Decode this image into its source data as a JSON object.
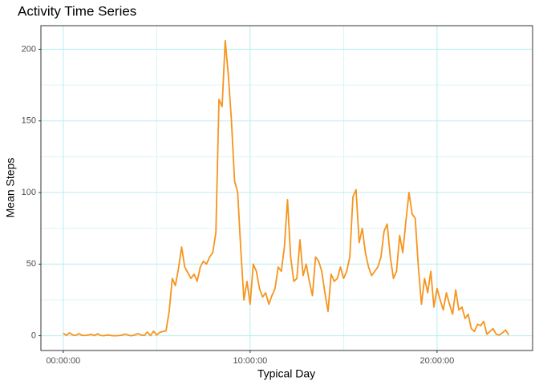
{
  "chart_data": {
    "type": "line",
    "title": "Activity Time Series",
    "x_label": "Typical Day",
    "y_label": "Mean Steps",
    "x": [
      0,
      10,
      20,
      30,
      40,
      50,
      60,
      70,
      80,
      90,
      100,
      110,
      120,
      130,
      140,
      150,
      160,
      170,
      180,
      190,
      200,
      210,
      220,
      230,
      240,
      250,
      260,
      270,
      280,
      290,
      300,
      310,
      320,
      330,
      340,
      350,
      360,
      370,
      380,
      390,
      400,
      410,
      420,
      430,
      440,
      450,
      460,
      470,
      480,
      490,
      500,
      510,
      520,
      530,
      540,
      550,
      560,
      570,
      580,
      590,
      600,
      610,
      620,
      630,
      640,
      650,
      660,
      670,
      680,
      690,
      700,
      710,
      720,
      730,
      740,
      750,
      760,
      770,
      780,
      790,
      800,
      810,
      820,
      830,
      840,
      850,
      860,
      870,
      880,
      890,
      900,
      910,
      920,
      930,
      940,
      950,
      960,
      970,
      980,
      990,
      1000,
      1010,
      1020,
      1030,
      1040,
      1050,
      1060,
      1070,
      1080,
      1090,
      1100,
      1110,
      1120,
      1130,
      1140,
      1150,
      1160,
      1170,
      1180,
      1190,
      1200,
      1210,
      1220,
      1230,
      1240,
      1250,
      1260,
      1270,
      1280,
      1290,
      1300,
      1310,
      1320,
      1330,
      1340,
      1350,
      1360,
      1370,
      1380,
      1390,
      1400,
      1410,
      1420,
      1430
    ],
    "series": [
      {
        "name": "Mean Steps",
        "color": "#f7941d",
        "values": [
          1.7,
          0.3,
          2.0,
          0.6,
          0.2,
          1.5,
          0.3,
          0.2,
          0.5,
          1.0,
          0.1,
          1.4,
          0.2,
          0.0,
          0.5,
          0.3,
          0.0,
          0.0,
          0.2,
          0.5,
          1.2,
          0.3,
          0.0,
          0.6,
          1.5,
          0.5,
          0.2,
          2.5,
          0.1,
          3.2,
          0.5,
          2.3,
          3.0,
          3.5,
          17,
          40,
          35,
          47,
          62,
          48,
          44,
          40,
          43,
          38,
          48,
          52,
          50,
          55,
          58,
          72,
          165,
          160,
          206,
          182,
          150,
          108,
          100,
          60,
          25,
          38,
          22,
          50,
          45,
          33,
          27,
          30,
          22,
          28,
          33,
          48,
          45,
          62,
          95,
          55,
          38,
          40,
          67,
          42,
          50,
          38,
          28,
          55,
          52,
          45,
          30,
          17,
          43,
          38,
          40,
          48,
          40,
          45,
          55,
          97,
          102,
          65,
          75,
          58,
          48,
          42,
          45,
          48,
          55,
          73,
          78,
          55,
          40,
          45,
          70,
          58,
          80,
          100,
          85,
          82,
          48,
          22,
          40,
          30,
          45,
          20,
          33,
          25,
          18,
          30,
          22,
          15,
          32,
          18,
          20,
          12,
          15,
          5,
          3,
          8,
          7,
          10,
          1,
          3,
          5,
          1,
          0.5,
          2,
          4,
          0.5
        ]
      }
    ],
    "xlim": [
      -71.75,
      1506.75
    ],
    "xticks": [
      {
        "value": 0,
        "label": "00:00:00"
      },
      {
        "value": 600,
        "label": "10:00:00"
      },
      {
        "value": 1200,
        "label": "20:00:00"
      }
    ],
    "x_minor_ticks": [
      300,
      900
    ],
    "ylim": [
      -10.31,
      216.48
    ],
    "yticks": [
      0,
      50,
      100,
      150,
      200
    ],
    "y_minor_ticks": [
      25,
      75,
      125,
      175
    ],
    "grid": true,
    "grid_color": "#b8eef0"
  }
}
